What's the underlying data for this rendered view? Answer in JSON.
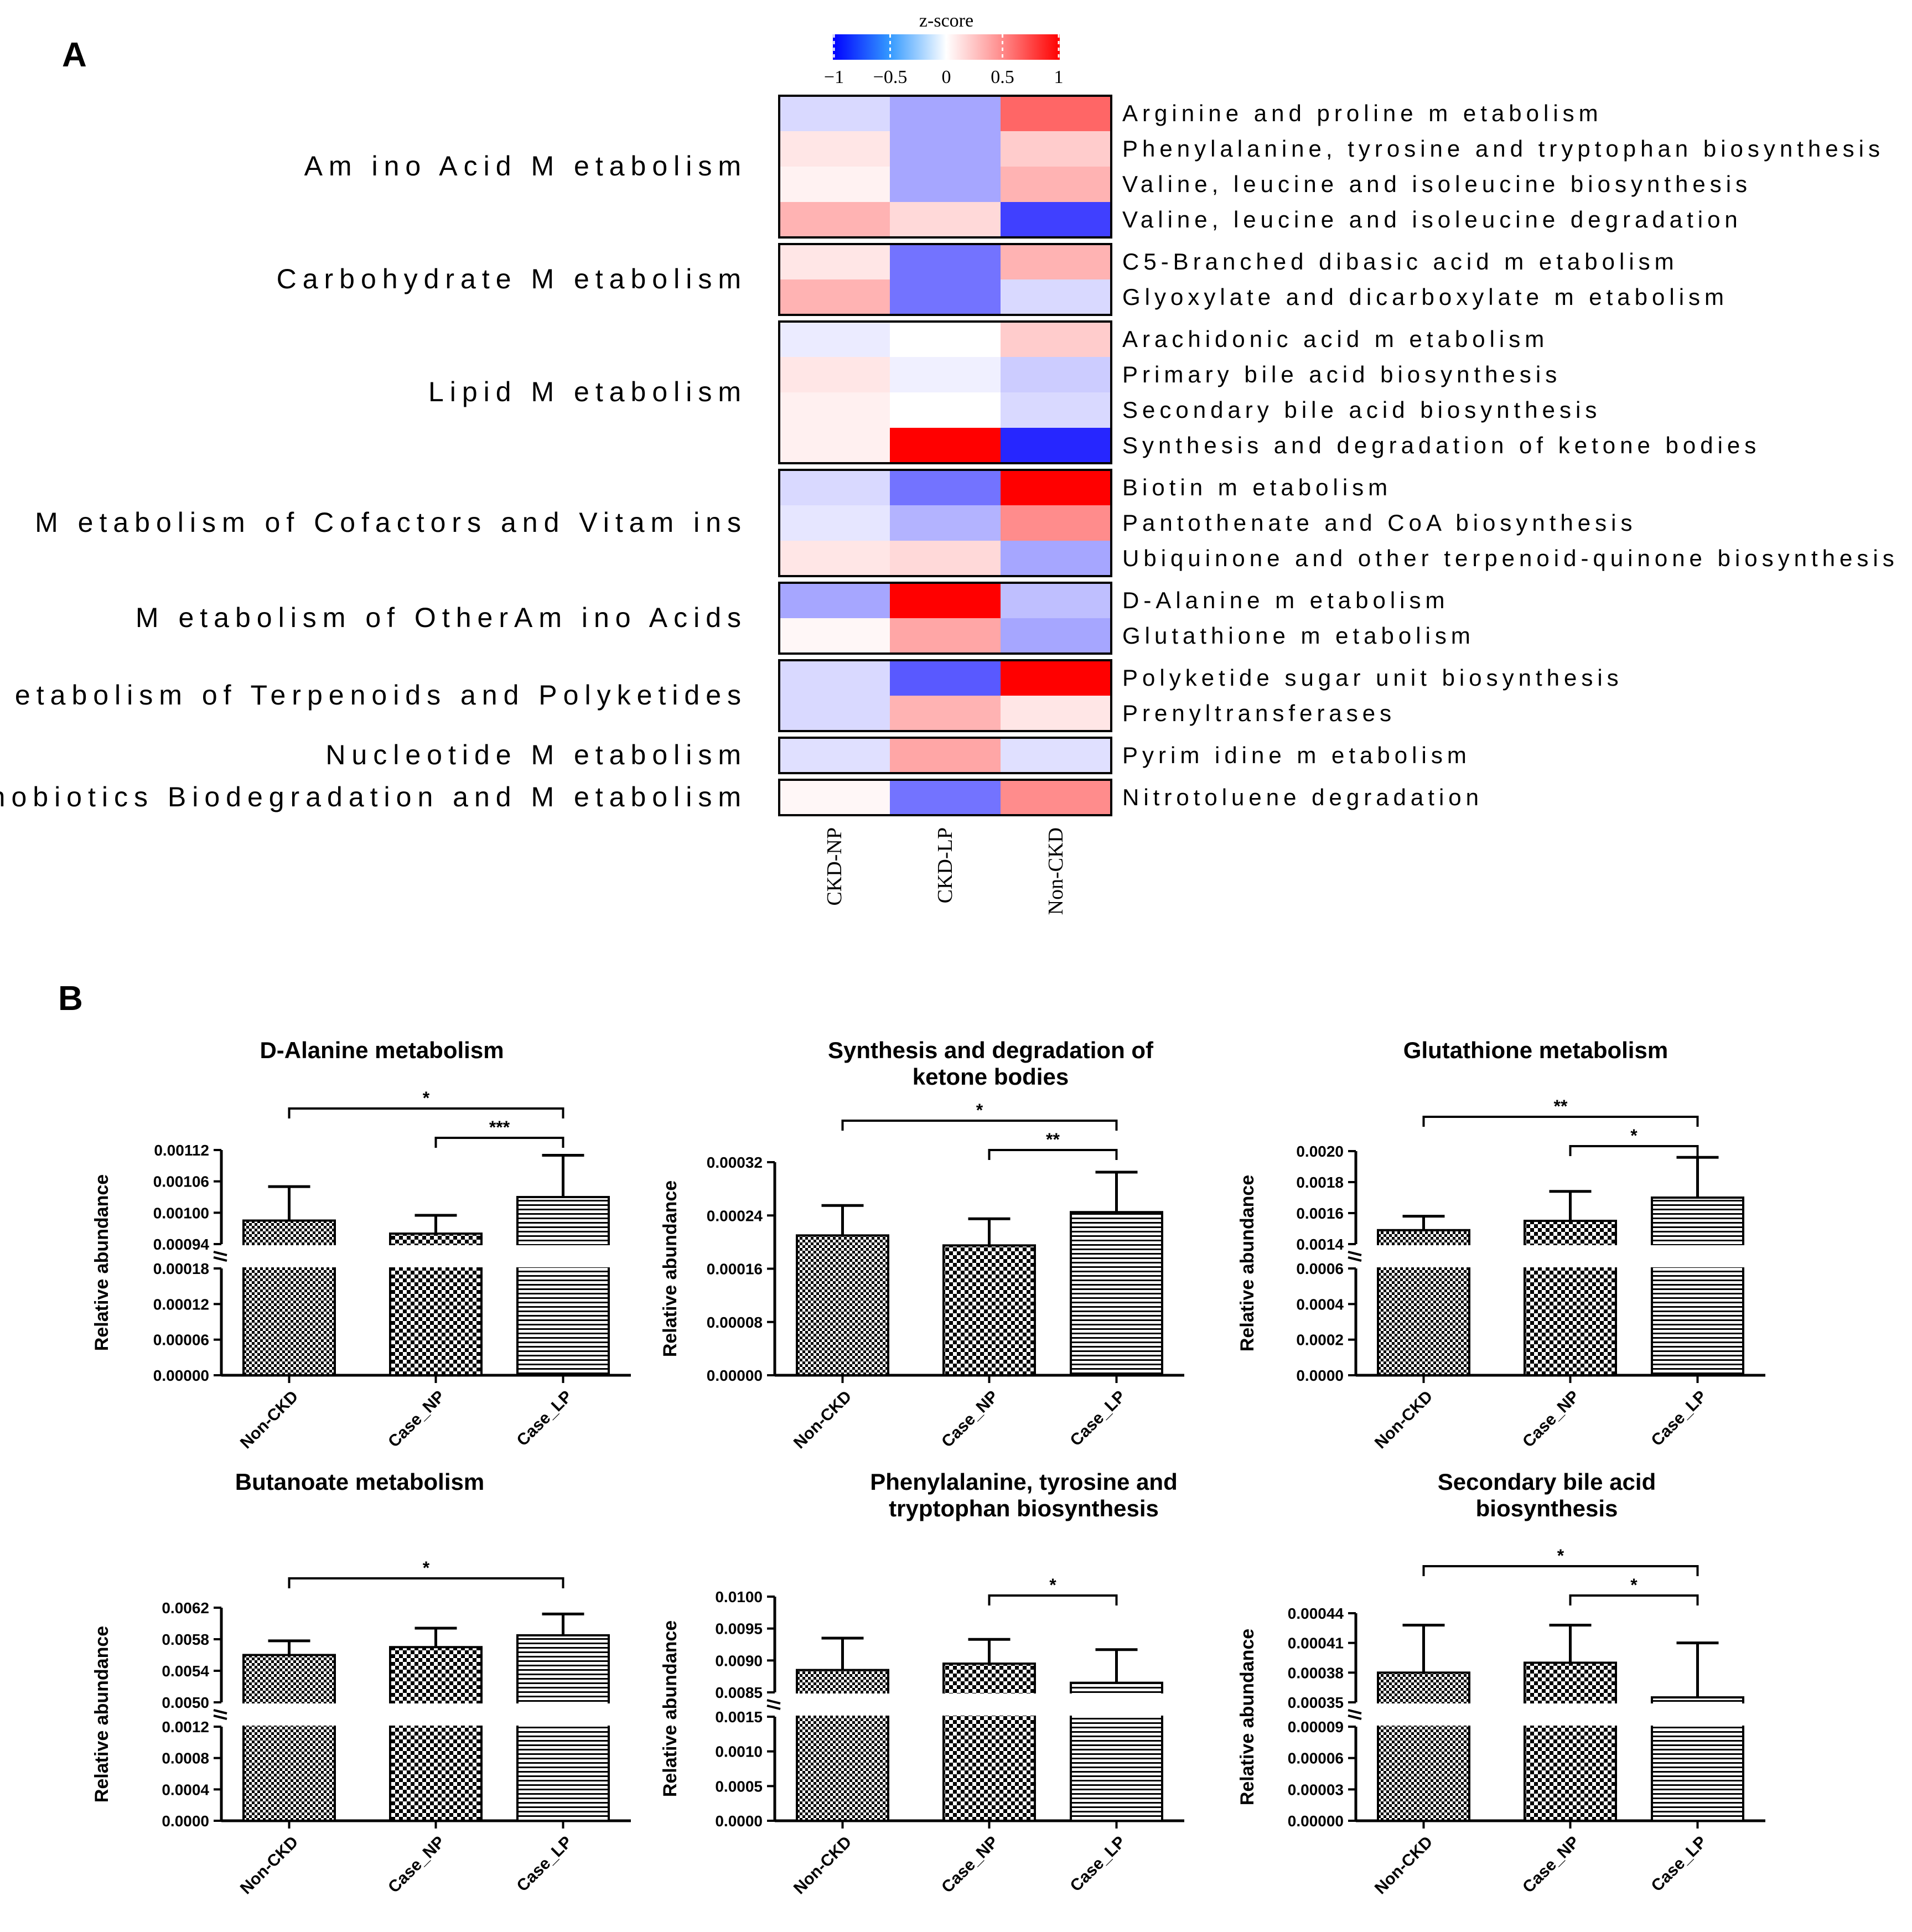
{
  "panel_labels": {
    "a": "A",
    "b": "B"
  },
  "colors": {
    "low": "#0000ff",
    "mid": "#ffffff",
    "high": "#ff0000"
  },
  "chart_data": [
    {
      "type": "heatmap",
      "title": "z-score",
      "colorbar": {
        "min": -1,
        "max": 1,
        "ticks": [
          "−1",
          "−0.5",
          "0",
          "0.5",
          "1"
        ]
      },
      "columns": [
        "CKD-NP",
        "CKD-LP",
        "Non-CKD"
      ],
      "groups": [
        {
          "name": "Am ino Acid M etabolism",
          "rows": [
            {
              "name": "Arginine and proline m etabolism",
              "values": [
                -0.15,
                -0.35,
                0.6
              ]
            },
            {
              "name": "Phenylalanine, tyrosine and tryptophan biosynthesis",
              "values": [
                0.1,
                -0.35,
                0.2
              ]
            },
            {
              "name": "Valine, leucine and isoleucine biosynthesis",
              "values": [
                0.05,
                -0.35,
                0.3
              ]
            },
            {
              "name": "Valine, leucine and isoleucine degradation",
              "values": [
                0.3,
                0.15,
                -0.75
              ]
            }
          ]
        },
        {
          "name": "Carbohydrate M etabolism",
          "rows": [
            {
              "name": "C5-Branched dibasic acid m etabolism",
              "values": [
                0.1,
                -0.55,
                0.3
              ]
            },
            {
              "name": "Glyoxylate and dicarboxylate m etabolism",
              "values": [
                0.3,
                -0.55,
                -0.15
              ]
            }
          ]
        },
        {
          "name": "Lipid M etabolism",
          "rows": [
            {
              "name": "Arachidonic acid m etabolism",
              "values": [
                -0.08,
                0,
                0.2
              ]
            },
            {
              "name": "Primary bile acid biosynthesis",
              "values": [
                0.1,
                -0.06,
                -0.2
              ]
            },
            {
              "name": "Secondary bile acid biosynthesis",
              "values": [
                0.06,
                0,
                -0.15
              ]
            },
            {
              "name": "Synthesis and degradation of ketone bodies",
              "values": [
                0.06,
                1,
                -0.85
              ]
            }
          ]
        },
        {
          "name": "M etabolism of Cofactors and Vitam ins",
          "rows": [
            {
              "name": "Biotin m etabolism",
              "values": [
                -0.15,
                -0.55,
                1
              ]
            },
            {
              "name": "Pantothenate and CoA biosynthesis",
              "values": [
                -0.1,
                -0.3,
                0.45
              ]
            },
            {
              "name": "Ubiquinone and other terpenoid-quinone biosynthesis",
              "values": [
                0.1,
                0.15,
                -0.35
              ]
            }
          ]
        },
        {
          "name": "M etabolism of OtherAm ino Acids",
          "rows": [
            {
              "name": "D-Alanine m etabolism",
              "values": [
                -0.35,
                1,
                -0.25
              ]
            },
            {
              "name": "Glutathione m etabolism",
              "values": [
                0.03,
                0.35,
                -0.35
              ]
            }
          ]
        },
        {
          "name": "M etabolism of Terpenoids and Polyketides",
          "rows": [
            {
              "name": "Polyketide sugar unit biosynthesis",
              "values": [
                -0.15,
                -0.65,
                1
              ]
            },
            {
              "name": "Prenyltransferases",
              "values": [
                -0.15,
                0.3,
                0.1
              ]
            }
          ]
        },
        {
          "name": "Nucleotide M etabolism",
          "rows": [
            {
              "name": "Pyrim idine m etabolism",
              "values": [
                -0.12,
                0.35,
                -0.12
              ]
            }
          ]
        },
        {
          "name": "Xenobiotics Biodegradation and M etabolism",
          "rows": [
            {
              "name": "Nitrotoluene degradation",
              "values": [
                0.03,
                -0.55,
                0.45
              ]
            }
          ]
        }
      ]
    },
    {
      "type": "bar",
      "title": [
        "D-Alanine metabolism"
      ],
      "ylabel": "Relative abundance",
      "categories": [
        "Non-CKD",
        "Case_NP",
        "Case_LP"
      ],
      "values": [
        0.000985,
        0.00096,
        0.00103
      ],
      "errors": [
        6.5e-05,
        3.5e-05,
        8e-05
      ],
      "lower_axis": {
        "ylim": [
          0,
          0.00018
        ],
        "ticks": [
          "0.00000",
          "0.00006",
          "0.00012",
          "0.00018"
        ]
      },
      "upper_axis": {
        "ylim": [
          0.00094,
          0.00112
        ],
        "ticks": [
          "0.00094",
          "0.00100",
          "0.00106",
          "0.00112"
        ]
      },
      "significance": [
        {
          "from": 0,
          "to": 2,
          "label": "*"
        },
        {
          "from": 1,
          "to": 2,
          "label": "***"
        }
      ]
    },
    {
      "type": "bar",
      "title": [
        "Synthesis and degradation of",
        "ketone bodies"
      ],
      "ylabel": "Relative abundance",
      "categories": [
        "Non-CKD",
        "Case_NP",
        "Case_LP"
      ],
      "values": [
        0.00021,
        0.000195,
        0.000245
      ],
      "errors": [
        4.5e-05,
        4e-05,
        6e-05
      ],
      "single_axis": {
        "ylim": [
          0,
          0.00032
        ],
        "ticks": [
          "0.00000",
          "0.00008",
          "0.00016",
          "0.00024",
          "0.00032"
        ]
      },
      "significance": [
        {
          "from": 0,
          "to": 2,
          "label": "*"
        },
        {
          "from": 1,
          "to": 2,
          "label": "**"
        }
      ]
    },
    {
      "type": "bar",
      "title": [
        "Glutathione metabolism"
      ],
      "ylabel": "Relative abundance",
      "categories": [
        "Non-CKD",
        "Case_NP",
        "Case_LP"
      ],
      "values": [
        0.00149,
        0.00155,
        0.0017
      ],
      "errors": [
        9e-05,
        0.00019,
        0.00026
      ],
      "lower_axis": {
        "ylim": [
          0,
          0.0006
        ],
        "ticks": [
          "0.0000",
          "0.0002",
          "0.0004",
          "0.0006"
        ]
      },
      "upper_axis": {
        "ylim": [
          0.0014,
          0.002
        ],
        "ticks": [
          "0.0014",
          "0.0016",
          "0.0018",
          "0.0020"
        ]
      },
      "significance": [
        {
          "from": 0,
          "to": 2,
          "label": "**"
        },
        {
          "from": 1,
          "to": 2,
          "label": "*"
        }
      ]
    },
    {
      "type": "bar",
      "title": [
        "Butanoate metabolism"
      ],
      "ylabel": "Relative abundance",
      "categories": [
        "Non-CKD",
        "Case_NP",
        "Case_LP"
      ],
      "values": [
        0.0056,
        0.0057,
        0.00585
      ],
      "errors": [
        0.00018,
        0.00024,
        0.00027
      ],
      "lower_axis": {
        "ylim": [
          0,
          0.0012
        ],
        "ticks": [
          "0.0000",
          "0.0004",
          "0.0008",
          "0.0012"
        ]
      },
      "upper_axis": {
        "ylim": [
          0.005,
          0.0062
        ],
        "ticks": [
          "0.0050",
          "0.0054",
          "0.0058",
          "0.0062"
        ]
      },
      "significance": [
        {
          "from": 0,
          "to": 2,
          "label": "*"
        }
      ]
    },
    {
      "type": "bar",
      "title": [
        "Phenylalanine, tyrosine and",
        "tryptophan biosynthesis"
      ],
      "ylabel": "Relative abundance",
      "categories": [
        "Non-CKD",
        "Case_NP",
        "Case_LP"
      ],
      "values": [
        0.00885,
        0.00895,
        0.00865
      ],
      "errors": [
        0.0005,
        0.00038,
        0.00052
      ],
      "lower_axis": {
        "ylim": [
          0,
          0.0015
        ],
        "ticks": [
          "0.0000",
          "0.0005",
          "0.0010",
          "0.0015"
        ]
      },
      "upper_axis": {
        "ylim": [
          0.0085,
          0.01
        ],
        "ticks": [
          "0.0085",
          "0.0090",
          "0.0095",
          "0.0100"
        ]
      },
      "significance": [
        {
          "from": 1,
          "to": 2,
          "label": "*"
        }
      ]
    },
    {
      "type": "bar",
      "title": [
        "Secondary bile acid",
        "biosynthesis"
      ],
      "ylabel": "Relative abundance",
      "categories": [
        "Non-CKD",
        "Case_NP",
        "Case_LP"
      ],
      "values": [
        0.00038,
        0.00039,
        0.000355
      ],
      "errors": [
        4.8e-05,
        3.8e-05,
        5.5e-05
      ],
      "lower_axis": {
        "ylim": [
          0,
          9e-05
        ],
        "ticks": [
          "0.00000",
          "0.00003",
          "0.00006",
          "0.00009"
        ]
      },
      "upper_axis": {
        "ylim": [
          0.00035,
          0.00044
        ],
        "ticks": [
          "0.00035",
          "0.00038",
          "0.00041",
          "0.00044"
        ]
      },
      "significance": [
        {
          "from": 0,
          "to": 2,
          "label": "*"
        },
        {
          "from": 1,
          "to": 2,
          "label": "*"
        }
      ]
    }
  ]
}
